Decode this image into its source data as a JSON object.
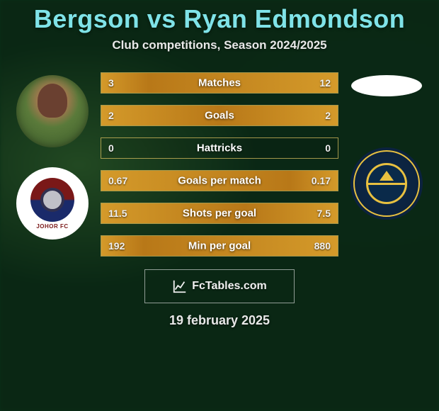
{
  "title": "Bergson vs Ryan Edmondson",
  "subtitle": "Club competitions, Season 2024/2025",
  "date": "19 february 2025",
  "watermark": "FcTables.com",
  "colors": {
    "title": "#7fe3e8",
    "bar_border": "#d4b860",
    "bar_fill": "#c4881e",
    "text": "#f0f0f0"
  },
  "player_left": {
    "name": "Bergson",
    "club_label": "JOHOR FC"
  },
  "player_right": {
    "name": "Ryan Edmondson"
  },
  "stats": [
    {
      "label": "Matches",
      "left_val": "3",
      "right_val": "12",
      "left_pct": 20,
      "right_pct": 80
    },
    {
      "label": "Goals",
      "left_val": "2",
      "right_val": "2",
      "left_pct": 50,
      "right_pct": 50
    },
    {
      "label": "Hattricks",
      "left_val": "0",
      "right_val": "0",
      "left_pct": 0,
      "right_pct": 0
    },
    {
      "label": "Goals per match",
      "left_val": "0.67",
      "right_val": "0.17",
      "left_pct": 80,
      "right_pct": 20
    },
    {
      "label": "Shots per goal",
      "left_val": "11.5",
      "right_val": "7.5",
      "left_pct": 61,
      "right_pct": 39
    },
    {
      "label": "Min per goal",
      "left_val": "192",
      "right_val": "880",
      "left_pct": 18,
      "right_pct": 82
    }
  ]
}
